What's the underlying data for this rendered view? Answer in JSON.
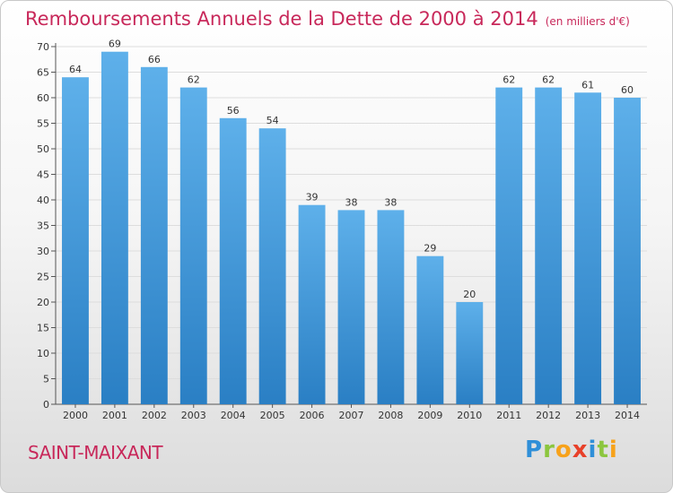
{
  "title": "Remboursements Annuels de la Dette de 2000 à 2014",
  "unit_label": "(en milliers d'€)",
  "commune": "SAINT-MAIXANT",
  "logo": {
    "p": "P",
    "r": "r",
    "o": "o",
    "x": "x",
    "i1": "i",
    "t": "t",
    "i2": "i"
  },
  "colors": {
    "title": "#c8285a",
    "bar_top": "#5eb0ea",
    "bar_bottom": "#2a7fc4",
    "grid": "#dddddd"
  },
  "chart_data": {
    "type": "bar",
    "title": "Remboursements Annuels de la Dette de 2000 à 2014",
    "xlabel": "",
    "ylabel": "en milliers d'€",
    "categories": [
      "2000",
      "2001",
      "2002",
      "2003",
      "2004",
      "2005",
      "2006",
      "2007",
      "2008",
      "2009",
      "2010",
      "2011",
      "2012",
      "2013",
      "2014"
    ],
    "values": [
      64,
      69,
      66,
      62,
      56,
      54,
      39,
      38,
      38,
      29,
      20,
      62,
      62,
      61,
      60
    ],
    "ylim": [
      0,
      70
    ],
    "yticks": [
      0,
      5,
      10,
      15,
      20,
      25,
      30,
      35,
      40,
      45,
      50,
      55,
      60,
      65,
      70
    ],
    "grid": true
  }
}
